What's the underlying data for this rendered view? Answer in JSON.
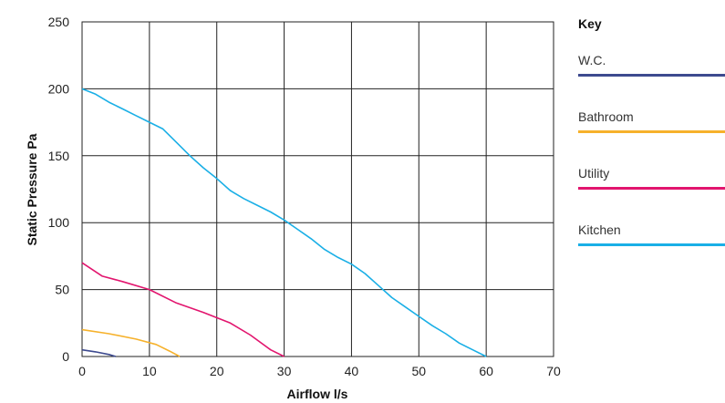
{
  "chart_data": {
    "type": "line",
    "xlabel": "Airflow l/s",
    "ylabel": "Static Pressure Pa",
    "xlim": [
      0,
      70
    ],
    "ylim": [
      0,
      250
    ],
    "xticks": [
      0,
      10,
      20,
      30,
      40,
      50,
      60,
      70
    ],
    "yticks": [
      0,
      50,
      100,
      150,
      200,
      250
    ],
    "grid": true,
    "legend_title": "Key",
    "legend_position": "right",
    "series": [
      {
        "name": "W.C.",
        "color": "#3d4a8f",
        "x": [
          0,
          2,
          4,
          5
        ],
        "y": [
          5,
          3.5,
          1.5,
          0
        ]
      },
      {
        "name": "Bathroom",
        "color": "#f6b12b",
        "x": [
          0,
          4,
          8,
          11,
          13,
          14.5
        ],
        "y": [
          20,
          17,
          13,
          9,
          4,
          0
        ]
      },
      {
        "name": "Utility",
        "color": "#e2156e",
        "x": [
          0,
          3,
          6,
          10,
          14,
          18,
          22,
          25,
          28,
          30
        ],
        "y": [
          70,
          60,
          56,
          50,
          40,
          33,
          25,
          16,
          5,
          0
        ]
      },
      {
        "name": "Kitchen",
        "color": "#1aafe6",
        "x": [
          0,
          2,
          4,
          6,
          8,
          10,
          12,
          14,
          16,
          18,
          20,
          22,
          24,
          26,
          28,
          30,
          32,
          34,
          36,
          38,
          40,
          42,
          44,
          46,
          48,
          50,
          52,
          54,
          56,
          58,
          60
        ],
        "y": [
          200,
          196,
          190,
          185,
          180,
          175,
          170,
          160,
          150,
          141,
          133,
          124,
          118,
          113,
          108,
          102,
          95,
          88,
          80,
          74,
          69,
          62,
          53,
          44,
          37,
          30,
          23,
          17,
          10,
          5,
          0
        ]
      }
    ]
  }
}
